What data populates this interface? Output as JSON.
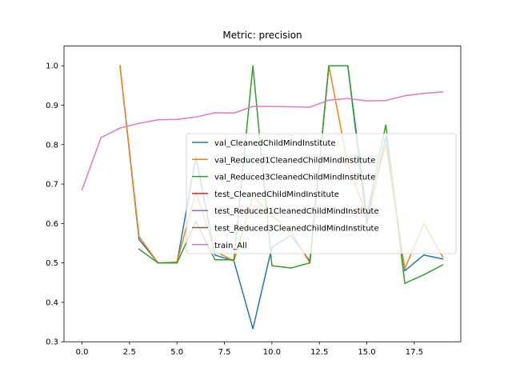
{
  "chart_data": {
    "type": "line",
    "title": "Metric: precision",
    "xlabel": "",
    "ylabel": "",
    "xlim": [
      -0.95,
      19.95
    ],
    "ylim": [
      0.3,
      1.05
    ],
    "xticks": [
      0.0,
      2.5,
      5.0,
      7.5,
      10.0,
      12.5,
      15.0,
      17.5
    ],
    "xtick_labels": [
      "0.0",
      "2.5",
      "5.0",
      "7.5",
      "10.0",
      "12.5",
      "15.0",
      "17.5"
    ],
    "yticks": [
      0.3,
      0.4,
      0.5,
      0.6,
      0.7,
      0.8,
      0.9,
      1.0
    ],
    "ytick_labels": [
      "0.3",
      "0.4",
      "0.5",
      "0.6",
      "0.7",
      "0.8",
      "0.9",
      "1.0"
    ],
    "grid": false,
    "legend_position": "center-right",
    "series": [
      {
        "name": "val_CleanedChildMindInstitute",
        "color": "#1f77b4",
        "x": [
          2,
          3,
          4,
          5,
          6,
          7,
          8,
          9,
          10,
          11,
          12,
          13,
          14,
          15,
          16,
          17,
          18,
          19
        ],
        "y": [
          1.0,
          0.56,
          0.5,
          0.5,
          0.77,
          0.52,
          0.505,
          0.333,
          0.54,
          0.57,
          0.505,
          1.0,
          1.0,
          0.6,
          0.82,
          0.48,
          0.52,
          0.51
        ]
      },
      {
        "name": "val_Reduced1CleanedChildMindInstitute",
        "color": "#ff7f0e",
        "x": [
          2,
          3,
          4,
          5,
          6,
          7,
          8,
          9,
          10,
          11,
          12,
          13,
          14,
          15,
          16,
          17,
          18,
          19
        ],
        "y": [
          1.0,
          0.567,
          0.5,
          0.502,
          0.68,
          0.53,
          0.505,
          0.67,
          0.62,
          0.58,
          0.5,
          1.0,
          0.75,
          0.62,
          0.8,
          0.485,
          0.6,
          0.515
        ]
      },
      {
        "name": "val_Reduced3CleanedChildMindInstitute",
        "color": "#2ca02c",
        "x": [
          3,
          4,
          5,
          6,
          7,
          8,
          9,
          10,
          11,
          12,
          13,
          14,
          15,
          16,
          17,
          18,
          19
        ],
        "y": [
          0.535,
          0.5,
          0.5,
          0.605,
          0.508,
          0.508,
          1.0,
          0.493,
          0.487,
          0.5,
          1.0,
          1.0,
          0.62,
          0.85,
          0.448,
          0.47,
          0.495
        ]
      },
      {
        "name": "test_CleanedChildMindInstitute",
        "color": "#d62728",
        "x": [],
        "y": []
      },
      {
        "name": "test_Reduced1CleanedChildMindInstitute",
        "color": "#9467bd",
        "x": [],
        "y": []
      },
      {
        "name": "test_Reduced3CleanedChildMindInstitute",
        "color": "#8c564b",
        "x": [],
        "y": []
      },
      {
        "name": "train_All",
        "color": "#e377c2",
        "x": [
          0,
          1,
          2,
          3,
          4,
          5,
          6,
          7,
          8,
          9,
          10,
          11,
          12,
          13,
          14,
          15,
          16,
          17,
          18,
          19
        ],
        "y": [
          0.686,
          0.818,
          0.842,
          0.854,
          0.863,
          0.864,
          0.87,
          0.881,
          0.88,
          0.897,
          0.897,
          0.896,
          0.895,
          0.913,
          0.917,
          0.911,
          0.912,
          0.924,
          0.93,
          0.934
        ]
      }
    ]
  }
}
